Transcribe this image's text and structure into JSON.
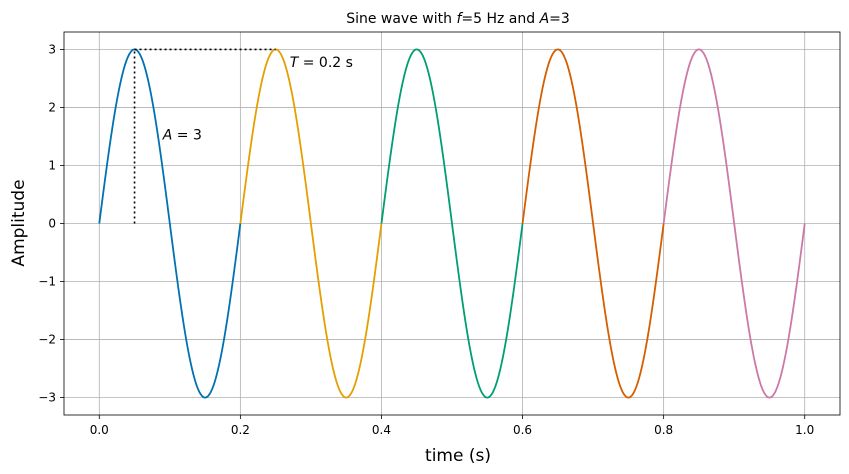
{
  "chart_data": {
    "type": "line",
    "title": "Sine wave with f=5 Hz and A=3",
    "title_parts": {
      "p1": "Sine wave with ",
      "f": "f",
      "p2": "=5 Hz and ",
      "a": "A",
      "p3": "=3"
    },
    "xlabel": "time (s)",
    "ylabel": "Amplitude",
    "xlim": [
      -0.05,
      1.05
    ],
    "ylim": [
      -3.3,
      3.3
    ],
    "xticks": [
      0.0,
      0.2,
      0.4,
      0.6,
      0.8,
      1.0
    ],
    "xtick_labels": [
      "0.0",
      "0.2",
      "0.4",
      "0.6",
      "0.8",
      "1.0"
    ],
    "yticks": [
      -3,
      -2,
      -1,
      0,
      1,
      2,
      3
    ],
    "ytick_labels": [
      "−3",
      "−2",
      "−1",
      "0",
      "1",
      "2",
      "3"
    ],
    "grid": true,
    "function": {
      "frequency_hz": 5,
      "amplitude": 3
    },
    "series": [
      {
        "x_range": [
          0.0,
          0.2
        ],
        "color": "#0072B2"
      },
      {
        "x_range": [
          0.2,
          0.4
        ],
        "color": "#E69F00"
      },
      {
        "x_range": [
          0.4,
          0.6
        ],
        "color": "#009E73"
      },
      {
        "x_range": [
          0.6,
          0.8
        ],
        "color": "#D55E00"
      },
      {
        "x_range": [
          0.8,
          1.0
        ],
        "color": "#CC79A7"
      }
    ],
    "annotations": {
      "amplitude": {
        "var": "A",
        "text": " = 3",
        "x": 0.09,
        "y": 1.45
      },
      "period": {
        "var": "T",
        "text": " = 0.2 s",
        "x": 0.27,
        "y": 2.7
      },
      "amplitude_guide": {
        "x": [
          0.05,
          0.05
        ],
        "y": [
          0,
          3
        ]
      },
      "period_guide": {
        "x": [
          0.05,
          0.25
        ],
        "y": [
          3,
          3
        ]
      }
    }
  }
}
